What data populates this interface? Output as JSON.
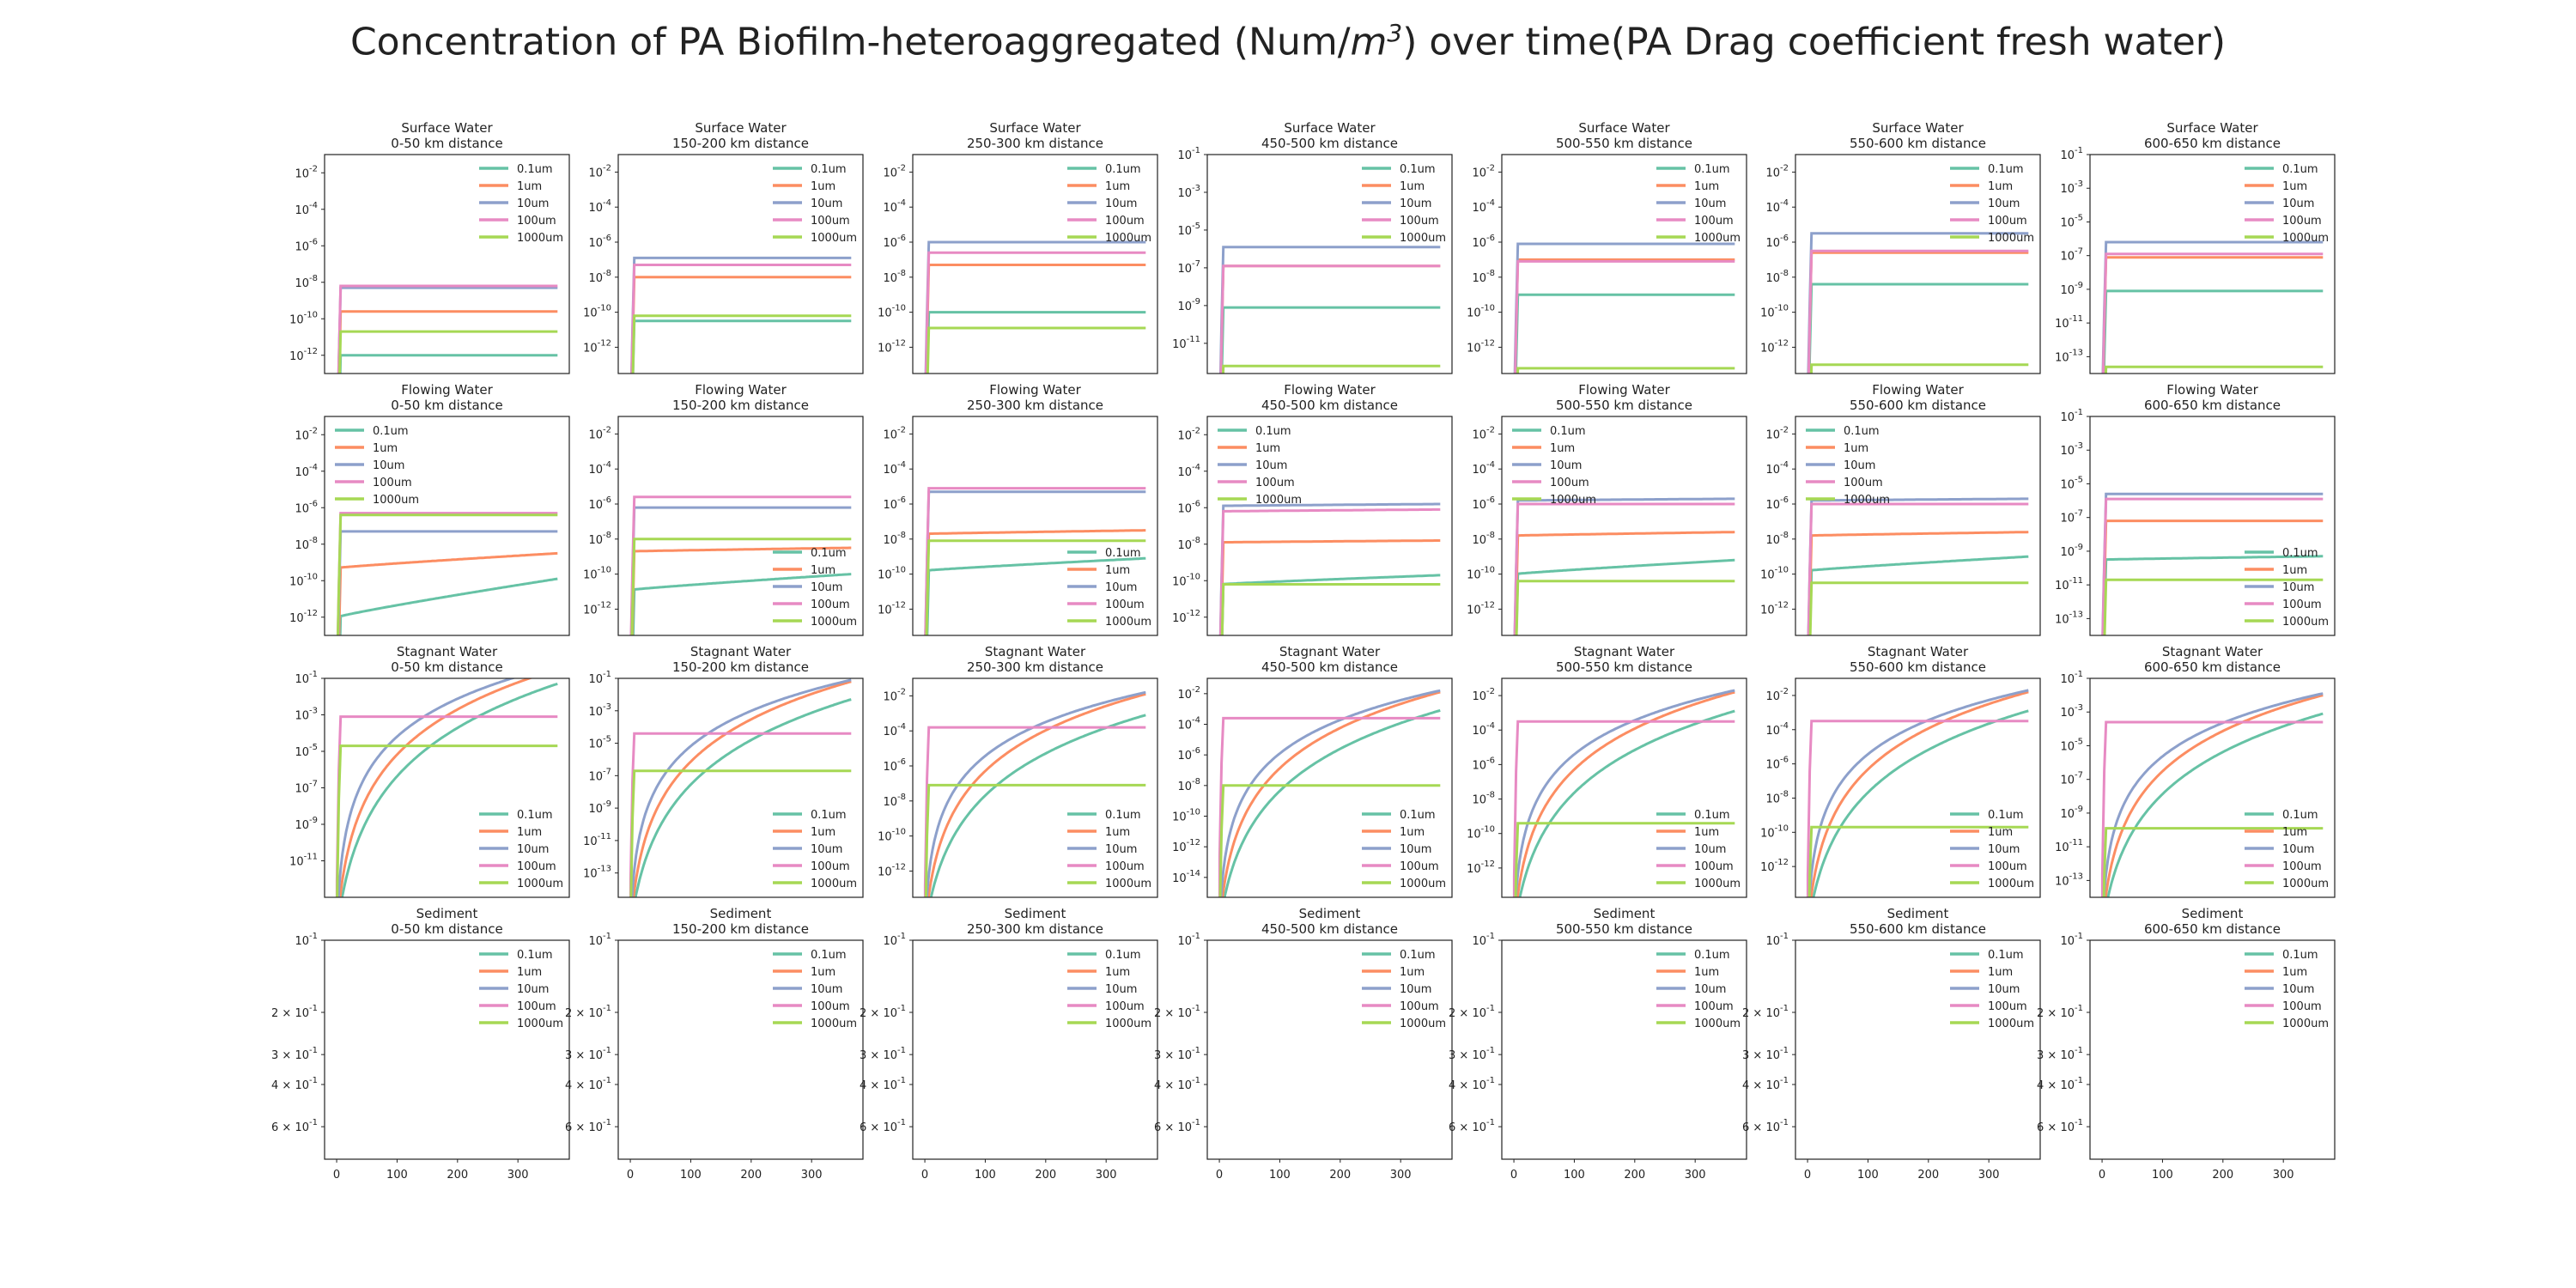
{
  "title": {
    "prefix": "Concentration of PA Biofilm-heteroaggregated (Num/",
    "unit_base": "m",
    "unit_exp": "3",
    "suffix": ") over time(PA Drag coefficient fresh water)"
  },
  "colors": {
    "0.1um": "#66c2a5",
    "1um": "#fc8d62",
    "10um": "#8da0cb",
    "100um": "#e78ac3",
    "1000um": "#a6d854"
  },
  "chart_data": {
    "type": "line",
    "layout": "grid 4 rows x 7 columns",
    "legend_entries": [
      "0.1um",
      "1um",
      "10um",
      "100um",
      "1000um"
    ],
    "distances": [
      "0-50 km distance",
      "150-200 km distance",
      "250-300 km distance",
      "450-500 km distance",
      "500-550 km distance",
      "550-600 km distance",
      "600-650 km distance"
    ],
    "x_axis": {
      "range": [
        -20,
        385
      ],
      "ticks": [
        0,
        100,
        200,
        300
      ],
      "tick_labels": [
        "0",
        "100",
        "200",
        "300"
      ],
      "shown_on_row": "Sediment"
    },
    "rows": [
      {
        "compartment": "Surface Water",
        "scale": "log",
        "legend_position": "upper right",
        "panels": [
          {
            "ylim_exp": [
              -13,
              -1
            ],
            "ticks": [
              -2,
              -4,
              -6,
              -8,
              -10,
              -12
            ],
            "final": {
              "0.1um": -12.0,
              "1um": -9.6,
              "10um": -8.3,
              "100um": -8.2,
              "1000um": -10.7
            }
          },
          {
            "ylim_exp": [
              -13.5,
              -1
            ],
            "ticks": [
              -2,
              -4,
              -6,
              -8,
              -10,
              -12
            ],
            "final": {
              "0.1um": -10.5,
              "1um": -8.0,
              "10um": -6.9,
              "100um": -7.3,
              "1000um": -10.2
            }
          },
          {
            "ylim_exp": [
              -13.5,
              -1
            ],
            "ticks": [
              -2,
              -4,
              -6,
              -8,
              -10,
              -12
            ],
            "final": {
              "0.1um": -10.0,
              "1um": -7.3,
              "10um": -6.0,
              "100um": -6.6,
              "1000um": -10.9
            }
          },
          {
            "ylim_exp": [
              -12.6,
              -1
            ],
            "ticks": [
              -1,
              -3,
              -5,
              -7,
              -9,
              -11
            ],
            "final": {
              "0.1um": -9.1,
              "1um": -6.9,
              "10um": -5.9,
              "100um": -6.9,
              "1000um": -12.2
            }
          },
          {
            "ylim_exp": [
              -13.5,
              -1
            ],
            "ticks": [
              -2,
              -4,
              -6,
              -8,
              -10,
              -12
            ],
            "final": {
              "0.1um": -9.0,
              "1um": -7.0,
              "10um": -6.1,
              "100um": -7.1,
              "1000um": -13.2
            }
          },
          {
            "ylim_exp": [
              -13.5,
              -1
            ],
            "ticks": [
              -2,
              -4,
              -6,
              -8,
              -10,
              -12
            ],
            "final": {
              "0.1um": -8.4,
              "1um": -6.6,
              "10um": -5.5,
              "100um": -6.5,
              "1000um": -13.0
            }
          },
          {
            "ylim_exp": [
              -14,
              -1
            ],
            "ticks": [
              -1,
              -3,
              -5,
              -7,
              -9,
              -11,
              -13
            ],
            "final": {
              "0.1um": -9.1,
              "1um": -7.1,
              "10um": -6.2,
              "100um": -6.9,
              "1000um": -13.6
            }
          }
        ]
      },
      {
        "compartment": "Flowing Water",
        "scale": "log",
        "legend_position": "varies",
        "panels": [
          {
            "ylim_exp": [
              -13,
              -1
            ],
            "ticks": [
              -2,
              -4,
              -6,
              -8,
              -10,
              -12
            ],
            "legend_position": "upper left",
            "start": {
              "0.1um": -12.0,
              "1um": -9.3,
              "10um": -7.3,
              "100um": -6.3,
              "1000um": -6.4
            },
            "final": {
              "0.1um": -9.9,
              "1um": -8.5,
              "10um": -7.3,
              "100um": -6.3,
              "1000um": -6.4
            }
          },
          {
            "ylim_exp": [
              -13.5,
              -1
            ],
            "ticks": [
              -2,
              -4,
              -6,
              -8,
              -10,
              -12
            ],
            "legend_position": "lower right",
            "start": {
              "0.1um": -10.9,
              "1um": -8.7,
              "10um": -6.2,
              "100um": -5.6,
              "1000um": -8.0
            },
            "final": {
              "0.1um": -10.0,
              "1um": -8.5,
              "10um": -6.2,
              "100um": -5.6,
              "1000um": -8.0
            }
          },
          {
            "ylim_exp": [
              -13.5,
              -1
            ],
            "ticks": [
              -2,
              -4,
              -6,
              -8,
              -10,
              -12
            ],
            "legend_position": "lower right",
            "start": {
              "0.1um": -9.8,
              "1um": -7.7,
              "10um": -5.3,
              "100um": -5.1,
              "1000um": -8.1
            },
            "final": {
              "0.1um": -9.1,
              "1um": -7.5,
              "10um": -5.3,
              "100um": -5.1,
              "1000um": -8.1
            }
          },
          {
            "ylim_exp": [
              -13,
              -1
            ],
            "ticks": [
              -2,
              -4,
              -6,
              -8,
              -10,
              -12
            ],
            "legend_position": "upper left",
            "start": {
              "0.1um": -10.2,
              "1um": -7.9,
              "10um": -5.9,
              "100um": -6.2,
              "1000um": -10.2
            },
            "final": {
              "0.1um": -9.7,
              "1um": -7.8,
              "10um": -5.8,
              "100um": -6.1,
              "1000um": -10.2
            }
          },
          {
            "ylim_exp": [
              -13.5,
              -1
            ],
            "ticks": [
              -2,
              -4,
              -6,
              -8,
              -10,
              -12
            ],
            "legend_position": "upper left",
            "start": {
              "0.1um": -10.0,
              "1um": -7.8,
              "10um": -5.8,
              "100um": -6.0,
              "1000um": -10.4
            },
            "final": {
              "0.1um": -9.2,
              "1um": -7.6,
              "10um": -5.7,
              "100um": -6.0,
              "1000um": -10.4
            }
          },
          {
            "ylim_exp": [
              -13.5,
              -1
            ],
            "ticks": [
              -2,
              -4,
              -6,
              -8,
              -10,
              -12
            ],
            "legend_position": "upper left",
            "start": {
              "0.1um": -9.8,
              "1um": -7.8,
              "10um": -5.8,
              "100um": -6.0,
              "1000um": -10.5
            },
            "final": {
              "0.1um": -9.0,
              "1um": -7.6,
              "10um": -5.7,
              "100um": -6.0,
              "1000um": -10.5
            }
          },
          {
            "ylim_exp": [
              -14,
              -1
            ],
            "ticks": [
              -1,
              -3,
              -5,
              -7,
              -9,
              -11,
              -13
            ],
            "legend_position": "lower right",
            "start": {
              "0.1um": -9.5,
              "1um": -7.2,
              "10um": -5.6,
              "100um": -5.9,
              "1000um": -10.7
            },
            "final": {
              "0.1um": -9.3,
              "1um": -7.2,
              "10um": -5.6,
              "100um": -5.9,
              "1000um": -10.7
            }
          }
        ]
      },
      {
        "compartment": "Stagnant Water",
        "scale": "log",
        "legend_position": "lower right",
        "panels": [
          {
            "ylim_exp": [
              -13,
              -1
            ],
            "ticks": [
              -1,
              -3,
              -5,
              -7,
              -9,
              -11
            ],
            "final": {
              "0.1um": -1.3,
              "1um": -0.5,
              "10um": -0.3,
              "100um": -3.1,
              "1000um": -4.7
            },
            "plateau_time": {
              "0.1um": 300,
              "1um": 160,
              "10um": 60,
              "100um": 5,
              "1000um": 5
            }
          },
          {
            "ylim_exp": [
              -14.5,
              -1
            ],
            "ticks": [
              -1,
              -3,
              -5,
              -7,
              -9,
              -11,
              -13
            ],
            "final": {
              "0.1um": -2.3,
              "1um": -1.2,
              "10um": -1.1,
              "100um": -4.4,
              "1000um": -6.7
            },
            "plateau_time": {
              "0.1um": 300,
              "1um": 160,
              "10um": 60,
              "100um": 5,
              "1000um": 5
            }
          },
          {
            "ylim_exp": [
              -13.5,
              -1
            ],
            "ticks": [
              -2,
              -4,
              -6,
              -8,
              -10,
              -12
            ],
            "final": {
              "0.1um": -3.1,
              "1um": -1.9,
              "10um": -1.8,
              "100um": -3.8,
              "1000um": -7.1
            },
            "plateau_time": {
              "0.1um": 300,
              "1um": 160,
              "10um": 60,
              "100um": 5,
              "1000um": 5
            }
          },
          {
            "ylim_exp": [
              -15.3,
              -1
            ],
            "ticks": [
              -2,
              -4,
              -6,
              -8,
              -10,
              -12,
              -14
            ],
            "final": {
              "0.1um": -3.1,
              "1um": -1.9,
              "10um": -1.8,
              "100um": -3.6,
              "1000um": -8.0
            },
            "plateau_time": {
              "0.1um": 300,
              "1um": 160,
              "10um": 60,
              "100um": 5,
              "1000um": 5
            }
          },
          {
            "ylim_exp": [
              -13.7,
              -1
            ],
            "ticks": [
              -2,
              -4,
              -6,
              -8,
              -10,
              -12
            ],
            "final": {
              "0.1um": -2.9,
              "1um": -1.8,
              "10um": -1.7,
              "100um": -3.5,
              "1000um": -9.4
            },
            "plateau_time": {
              "0.1um": 300,
              "1um": 160,
              "10um": 60,
              "100um": 5,
              "1000um": 5
            }
          },
          {
            "ylim_exp": [
              -13.8,
              -1
            ],
            "ticks": [
              -2,
              -4,
              -6,
              -8,
              -10,
              -12
            ],
            "final": {
              "0.1um": -2.9,
              "1um": -1.8,
              "10um": -1.7,
              "100um": -3.5,
              "1000um": -9.7
            },
            "plateau_time": {
              "0.1um": 300,
              "1um": 160,
              "10um": 60,
              "100um": 5,
              "1000um": 5
            }
          },
          {
            "ylim_exp": [
              -14,
              -1
            ],
            "ticks": [
              -1,
              -3,
              -5,
              -7,
              -9,
              -11,
              -13
            ],
            "final": {
              "0.1um": -3.1,
              "1um": -2.0,
              "10um": -1.9,
              "100um": -3.6,
              "1000um": -9.9
            },
            "plateau_time": {
              "0.1um": 300,
              "1um": 160,
              "10um": 60,
              "100um": 5,
              "1000um": 5
            }
          }
        ]
      },
      {
        "compartment": "Sediment",
        "scale": "log (empty)",
        "legend_position": "upper right",
        "y_tick_labels": [
          {
            "value": 0.1,
            "mantissa": "",
            "exp": "-1",
            "base": "10"
          },
          {
            "value": 0.2,
            "mantissa": "2 × ",
            "exp": "-1",
            "base": "10"
          },
          {
            "value": 0.3,
            "mantissa": "3 × ",
            "exp": "-1",
            "base": "10"
          },
          {
            "value": 0.4,
            "mantissa": "4 × ",
            "exp": "-1",
            "base": "10"
          },
          {
            "value": 0.6,
            "mantissa": "6 × ",
            "exp": "-1",
            "base": "10"
          }
        ],
        "y_inverted": true,
        "series_data": "none"
      }
    ]
  }
}
